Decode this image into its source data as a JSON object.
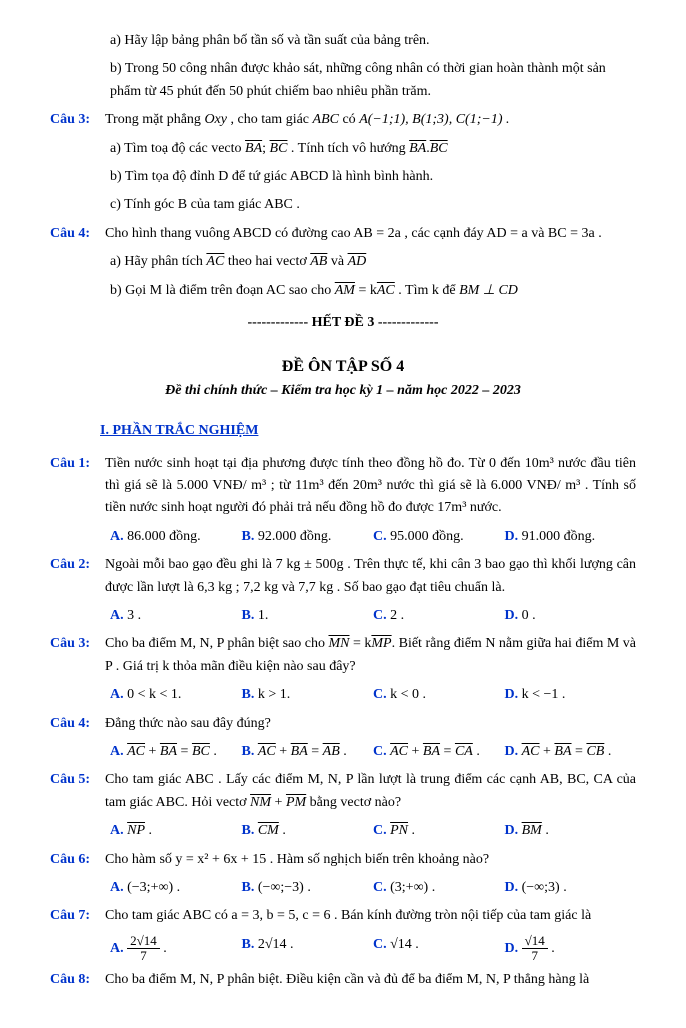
{
  "top": {
    "a": "a) Hãy lập bảng phân bố tần số và tần suất của bảng trên.",
    "b": "b) Trong 50 công nhân được khảo sát, những công nhân có thời gian hoàn thành một sản phẩm từ 45 phút đến 50 phút chiếm bao nhiêu phần trăm."
  },
  "cau3": {
    "label": "Câu 3:",
    "stem_pre": "Trong mặt phẳng ",
    "oxy": "Oxy",
    "stem_mid": " , cho tam giác ",
    "abc": "ABC",
    "stem_suf": " có ",
    "pts": "A(−1;1), B(1;3), C(1;−1) .",
    "a_pre": "a) Tìm toạ độ các vecto ",
    "a_mid": " . Tính tích vô hướng ",
    "b": "b) Tìm tọa độ đỉnh D để tứ giác ABCD là hình bình hành.",
    "c": "c) Tính góc B của tam giác ABC ."
  },
  "cau4": {
    "label": "Câu 4:",
    "stem": "Cho hình thang vuông ABCD có đường cao AB = 2a , các cạnh đáy AD = a và BC = 3a .",
    "a_pre": "a) Hãy phân tích ",
    "a_mid": " theo hai vectơ ",
    "a_and": " và ",
    "b_pre": "b) Gọi M là điểm trên đoạn AC sao cho ",
    "b_eq1": " = k",
    "b_mid": " . Tìm k để ",
    "b_perp": "BM ⊥ CD"
  },
  "het": "------------- HẾT ĐỀ 3 -------------",
  "title4": "ĐỀ ÔN TẬP SỐ 4",
  "subtitle4": "Đề thi chính thức – Kiểm tra học kỳ 1 – năm học 2022 – 2023",
  "sec1": "I. PHẦN TRẮC NGHIỆM",
  "q1": {
    "label": "Câu 1:",
    "stem": "Tiền nước sinh hoạt tại địa phương được tính theo đồng hồ đo. Từ 0 đến 10m³ nước đầu tiên thì giá sẽ là 5.000 VNĐ/ m³ ; từ 11m³ đến 20m³ nước thì giá sẽ là 6.000 VNĐ/ m³ . Tính số tiền nước sinh hoạt người đó phải trả nếu đồng hồ đo được 17m³ nước.",
    "A": "86.000 đồng.",
    "B": "92.000 đồng.",
    "C": "95.000 đồng.",
    "D": "91.000 đồng."
  },
  "q2": {
    "label": "Câu 2:",
    "stem": "Ngoài mỗi bao gạo đều ghi là 7 kg ± 500g . Trên thực tế, khi cân 3 bao gạo thì khối lượng cân được lần lượt là 6,3 kg ; 7,2 kg và 7,7 kg . Số bao gạo đạt tiêu chuẩn là.",
    "A": "3 .",
    "B": "1.",
    "C": "2 .",
    "D": "0 ."
  },
  "q3": {
    "label": "Câu 3:",
    "stem_pre": "Cho ba điểm M, N, P phân biệt sao cho ",
    "stem_eq": " = k",
    "stem_mid": ". Biết rằng điểm N nằm giữa hai điểm M và P . Giá trị k thỏa mãn điều kiện nào sau đây?",
    "A": "0 < k < 1.",
    "B": "k > 1.",
    "C": "k < 0 .",
    "D": "k < −1 ."
  },
  "q4": {
    "label": "Câu 4:",
    "stem": "Đẳng thức nào sau đây đúng?"
  },
  "q5": {
    "label": "Câu 5:",
    "stem_pre": "Cho tam giác ABC . Lấy các điểm M, N, P lần lượt là trung điểm các cạnh AB, BC, CA của tam giác ABC. Hỏi vectơ ",
    "stem_plus": " + ",
    "stem_suf": " bằng vectơ nào?"
  },
  "q6": {
    "label": "Câu 6:",
    "stem": "Cho hàm số y = x² + 6x + 15 . Hàm số nghịch biến trên khoảng nào?",
    "A": "(−3;+∞) .",
    "B": "(−∞;−3) .",
    "C": "(3;+∞) .",
    "D": "(−∞;3) ."
  },
  "q7": {
    "label": "Câu 7:",
    "stem": "Cho tam giác ABC có a = 3, b = 5, c = 6 . Bán kính đường tròn nội tiếp của tam giác là"
  },
  "q8": {
    "label": "Câu 8:",
    "stem": "Cho ba điểm M, N, P phân biệt. Điều kiện cần và đủ để ba điểm M, N, P thẳng hàng là"
  }
}
